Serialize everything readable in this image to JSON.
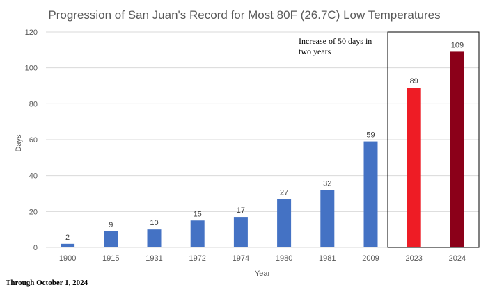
{
  "chart_data": {
    "type": "bar",
    "title": "Progression of San Juan's Record for Most 80F (26.7C) Low Temperatures",
    "xlabel": "Year",
    "ylabel": "Days",
    "ylim": [
      0,
      120
    ],
    "yticks": [
      0,
      20,
      40,
      60,
      80,
      100,
      120
    ],
    "grid": true,
    "categories": [
      "1900",
      "1915",
      "1931",
      "1972",
      "1974",
      "1980",
      "1981",
      "2009",
      "2023",
      "2024"
    ],
    "values": [
      2,
      9,
      10,
      15,
      17,
      27,
      32,
      59,
      89,
      109
    ],
    "bar_colors": [
      "#4472c4",
      "#4472c4",
      "#4472c4",
      "#4472c4",
      "#4472c4",
      "#4472c4",
      "#4472c4",
      "#4472c4",
      "#ee1c25",
      "#8b0019"
    ],
    "annotation": {
      "line1": "Increase of 50 days in",
      "line2": "two years",
      "highlight_categories": [
        "2023",
        "2024"
      ]
    },
    "footnote": "Through October 1, 2024"
  }
}
